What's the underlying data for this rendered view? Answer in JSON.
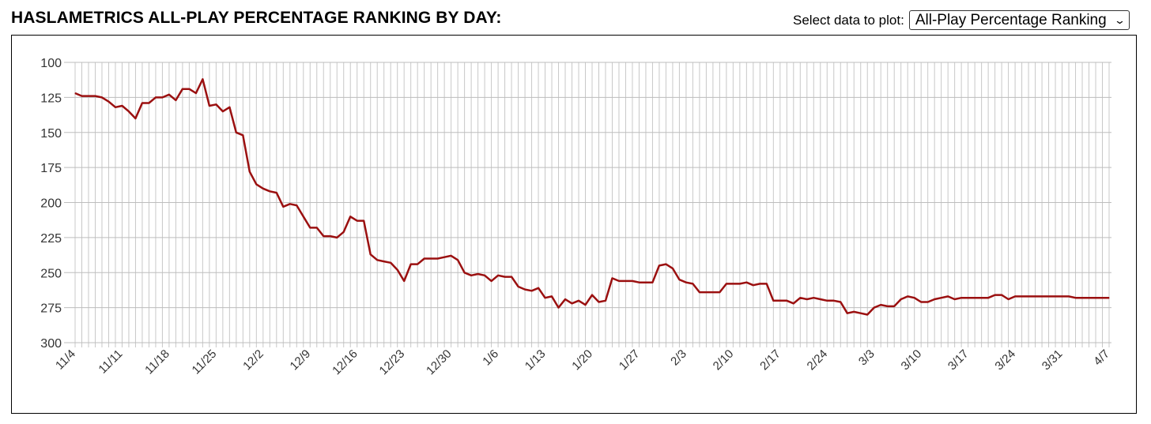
{
  "header": {
    "title": "HASLAMETRICS ALL-PLAY PERCENTAGE RANKING BY DAY:",
    "select_label": "Select data to plot:",
    "select_value": "All-Play Percentage Ranking"
  },
  "colors": {
    "line": "#9b1010",
    "grid": "#c8c8c8"
  },
  "icons": {
    "dropdown": "chevron-down-icon"
  },
  "chart_data": {
    "type": "line",
    "title": "HASLAMETRICS ALL-PLAY PERCENTAGE RANKING BY DAY:",
    "xlabel": "",
    "ylabel": "",
    "y_reversed": true,
    "ylim": [
      100,
      300
    ],
    "yticks": [
      100,
      125,
      150,
      175,
      200,
      225,
      250,
      275,
      300
    ],
    "xtick_labels": [
      "11/4",
      "11/11",
      "11/18",
      "11/25",
      "12/2",
      "12/9",
      "12/16",
      "12/23",
      "12/30",
      "1/6",
      "1/13",
      "1/20",
      "1/27",
      "2/3",
      "2/10",
      "2/17",
      "2/24",
      "3/3",
      "3/10",
      "3/17",
      "3/24",
      "3/31",
      "4/7"
    ],
    "grid": true,
    "legend": "none",
    "series": [
      {
        "values": [
          122,
          124,
          124,
          124,
          125,
          128,
          132,
          131,
          135,
          140,
          129,
          129,
          125,
          125,
          123,
          127,
          119,
          119,
          122,
          112,
          131,
          130,
          135,
          132,
          150,
          152,
          178,
          187,
          190,
          192,
          193,
          203,
          201,
          202,
          210,
          218,
          218,
          224,
          224,
          225,
          221,
          210,
          213,
          213,
          237,
          241,
          242,
          243,
          248,
          256,
          244,
          244,
          240,
          240,
          240,
          239,
          238,
          241,
          250,
          252,
          251,
          252,
          256,
          252,
          253,
          253,
          260,
          262,
          263,
          261,
          268,
          267,
          275,
          269,
          272,
          270,
          273,
          266,
          271,
          270,
          254,
          256,
          256,
          256,
          257,
          257,
          257,
          245,
          244,
          247,
          255,
          257,
          258,
          264,
          264,
          264,
          264,
          258,
          258,
          258,
          257,
          259,
          258,
          258,
          270,
          270,
          270,
          272,
          268,
          269,
          268,
          269,
          270,
          270,
          271,
          279,
          278,
          279,
          280,
          275,
          273,
          274,
          274,
          269,
          267,
          268,
          271,
          271,
          269,
          268,
          267,
          269,
          268,
          268,
          268,
          268,
          268,
          266,
          266,
          269,
          267,
          267,
          267,
          267,
          267,
          267,
          267,
          267,
          267,
          268,
          268,
          268,
          268,
          268,
          268
        ]
      }
    ]
  }
}
